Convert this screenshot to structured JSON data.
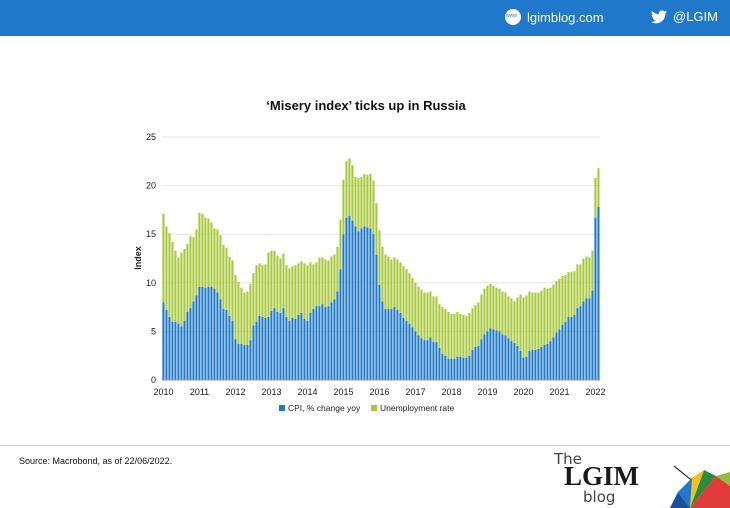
{
  "header": {
    "site_label": "lgimblog.com",
    "twitter_label": "@LGIM",
    "brand_color": "#1f78c9"
  },
  "footer": {
    "source": "Source: Macrobond, as of 22/06/2022.",
    "logo_top": "The",
    "logo_main": "LGIM",
    "logo_bottom": "blog"
  },
  "chart_data": {
    "type": "bar",
    "stacked": true,
    "title": "‘Misery index’ ticks up in Russia",
    "ylabel": "Index",
    "xlabel": "",
    "ylim": [
      0,
      25
    ],
    "yticks": [
      0,
      5,
      10,
      15,
      20,
      25
    ],
    "xticks": [
      "2010",
      "2011",
      "2012",
      "2013",
      "2014",
      "2015",
      "2016",
      "2017",
      "2018",
      "2019",
      "2020",
      "2021",
      "2022"
    ],
    "grid": true,
    "legend_position": "bottom",
    "colors": {
      "cpi": "#1f78c9",
      "unemployment": "#a8c83c"
    },
    "series": [
      {
        "name": "CPI, % change yoy",
        "values": [
          8.0,
          7.2,
          6.5,
          6.0,
          6.0,
          5.8,
          5.5,
          6.1,
          7.0,
          7.4,
          8.1,
          8.7,
          9.6,
          9.6,
          9.5,
          9.6,
          9.6,
          9.4,
          9.0,
          8.3,
          7.3,
          7.2,
          6.6,
          6.1,
          4.2,
          3.7,
          3.7,
          3.6,
          3.6,
          4.1,
          5.6,
          6.0,
          6.6,
          6.5,
          6.4,
          6.5,
          7.1,
          7.4,
          7.0,
          6.9,
          7.4,
          6.5,
          6.1,
          6.4,
          6.3,
          6.7,
          6.9,
          6.3,
          6.1,
          6.9,
          7.3,
          7.6,
          7.6,
          7.8,
          7.5,
          7.6,
          8.0,
          8.3,
          9.1,
          11.4,
          15.0,
          16.7,
          16.9,
          16.4,
          15.8,
          15.3,
          15.6,
          15.8,
          15.7,
          15.6,
          15.0,
          12.9,
          9.8,
          8.1,
          7.3,
          7.3,
          7.3,
          7.5,
          7.2,
          6.9,
          6.4,
          6.1,
          5.8,
          5.4,
          5.0,
          4.6,
          4.3,
          4.1,
          4.1,
          4.4,
          3.9,
          3.9,
          3.3,
          2.7,
          2.5,
          2.2,
          2.2,
          2.2,
          2.4,
          2.4,
          2.3,
          2.3,
          2.5,
          3.1,
          3.4,
          3.5,
          4.2,
          4.7,
          5.0,
          5.3,
          5.2,
          5.1,
          5.0,
          4.7,
          4.6,
          4.3,
          4.0,
          3.8,
          3.5,
          3.0,
          2.3,
          2.4,
          3.0,
          3.1,
          3.1,
          3.2,
          3.4,
          3.6,
          3.7,
          4.0,
          4.4,
          4.9,
          5.2,
          5.7,
          6.0,
          6.5,
          6.5,
          6.7,
          7.4,
          7.6,
          8.1,
          8.4,
          8.4,
          9.2,
          16.7,
          17.8
        ]
      },
      {
        "name": "Unemployment rate",
        "values": [
          9.1,
          8.6,
          8.6,
          8.2,
          7.3,
          6.8,
          7.6,
          7.4,
          7.0,
          7.4,
          6.6,
          6.8,
          7.6,
          7.5,
          7.2,
          7.0,
          6.6,
          6.2,
          6.5,
          6.6,
          6.6,
          6.4,
          6.1,
          6.2,
          6.6,
          6.4,
          5.8,
          5.4,
          5.5,
          5.8,
          5.4,
          5.8,
          5.4,
          5.3,
          5.5,
          6.6,
          6.2,
          5.9,
          5.8,
          5.6,
          5.6,
          5.3,
          5.4,
          5.3,
          5.5,
          5.3,
          5.3,
          5.7,
          5.7,
          5.2,
          4.6,
          4.5,
          5.0,
          4.8,
          4.9,
          4.7,
          4.7,
          4.6,
          4.6,
          5.1,
          5.6,
          5.8,
          5.9,
          5.7,
          5.1,
          5.5,
          5.3,
          5.4,
          5.4,
          5.6,
          5.5,
          5.3,
          5.6,
          5.6,
          5.6,
          5.4,
          5.1,
          5.1,
          5.2,
          5.2,
          5.3,
          5.3,
          5.2,
          5.1,
          5.0,
          5.0,
          5.0,
          4.9,
          4.9,
          4.7,
          4.7,
          4.7,
          4.5,
          4.8,
          4.8,
          4.8,
          4.6,
          4.6,
          4.6,
          4.4,
          4.4,
          4.3,
          4.4,
          4.3,
          4.3,
          4.5,
          4.6,
          4.7,
          4.7,
          4.6,
          4.5,
          4.4,
          4.4,
          4.4,
          4.4,
          4.3,
          4.4,
          4.3,
          5.0,
          5.8,
          6.2,
          6.3,
          6.1,
          5.9,
          5.9,
          5.8,
          5.8,
          5.9,
          5.7,
          5.5,
          5.4,
          5.3,
          5.2,
          5.0,
          4.8,
          4.6,
          4.6,
          4.5,
          4.5,
          4.3,
          4.4,
          4.3,
          4.2,
          4.1,
          4.1,
          4.0
        ]
      }
    ]
  }
}
